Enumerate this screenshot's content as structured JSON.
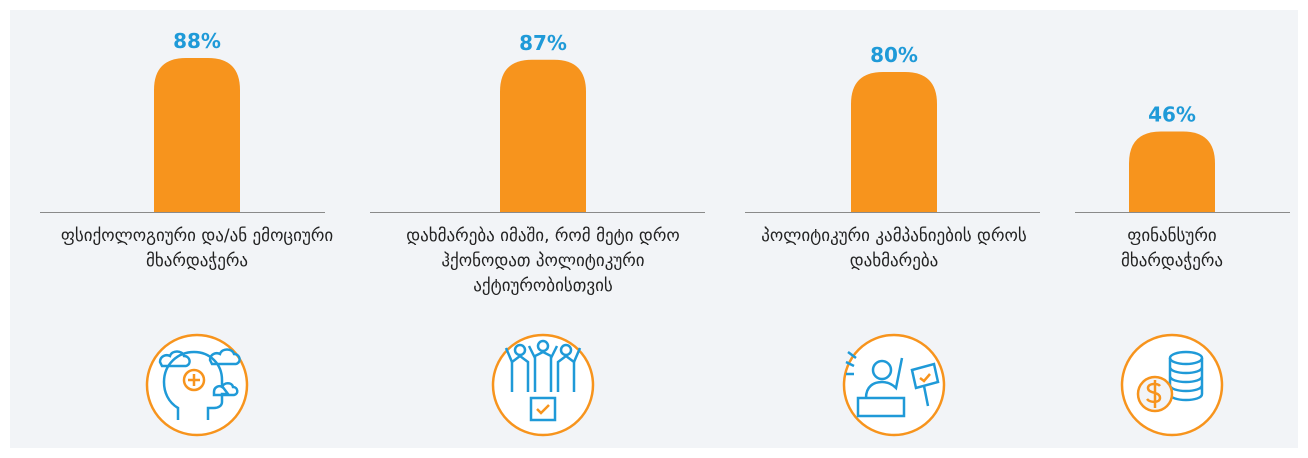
{
  "chart_data": {
    "type": "bar",
    "categories": [
      "ფსიქოლოგიური და/ან ემოციური მხარდაჭერა",
      "დახმარება იმაში, რომ მეტი დრო ჰქონოდათ პოლიტიკური აქტიურობისთვის",
      "პოლიტიკური კამპანიების დროს დახმარება",
      "ფინანსური მხარდაჭერა"
    ],
    "values": [
      88,
      87,
      80,
      46
    ],
    "value_labels": [
      "88%",
      "87%",
      "80%",
      "46%"
    ],
    "color": "#f7941d"
  }
}
